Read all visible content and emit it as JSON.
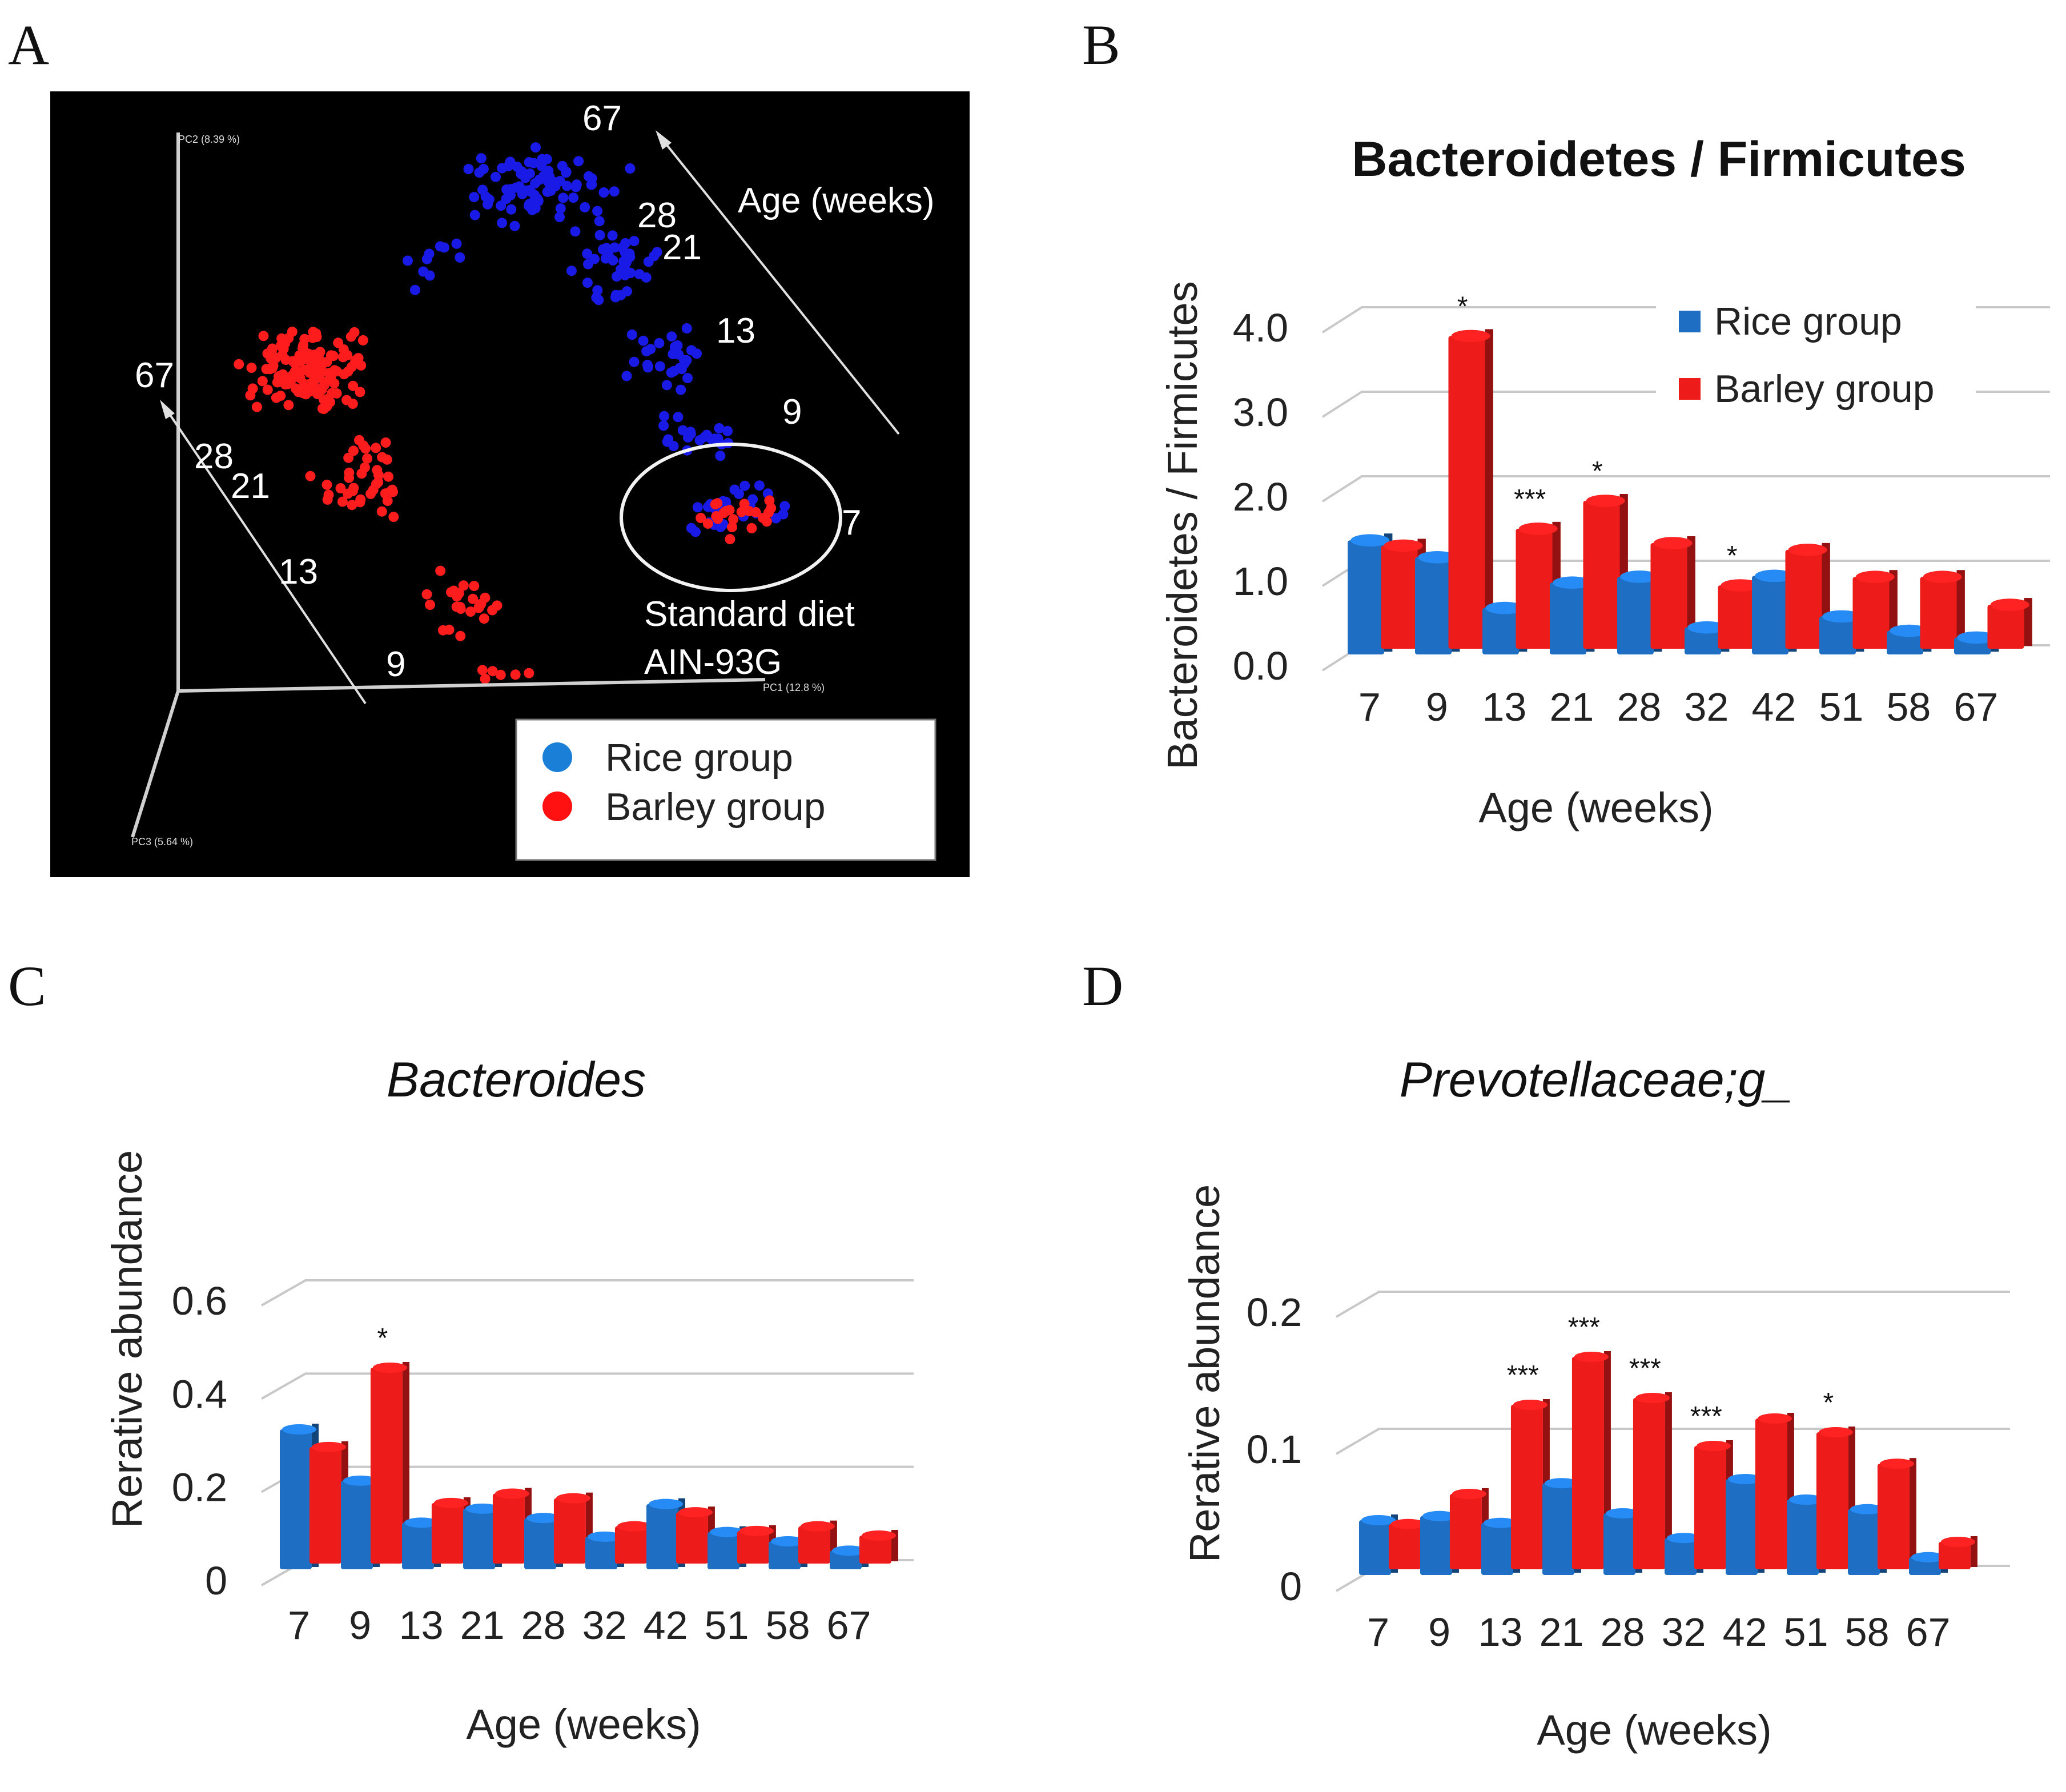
{
  "colors": {
    "rice": "#1e6fc4",
    "rice_dark": "#0f4f96",
    "barley": "#ee1b1b",
    "barley_dark": "#b00d0d",
    "pca_rice": "#1a1ae6",
    "pca_barley": "#ff1c1c",
    "pca_legend_rice": "#1a7fd6",
    "pca_legend_barley": "#ff1111"
  },
  "panels": {
    "a": "A",
    "b": "B",
    "c": "C",
    "d": "D"
  },
  "pca": {
    "legend": [
      "Rice group",
      "Barley group"
    ],
    "age_arrow_label": "Age (weeks)",
    "rice_age_labels": [
      "67",
      "28",
      "21",
      "13",
      "9",
      "7"
    ],
    "barley_age_labels": [
      "67",
      "28",
      "21",
      "13",
      "9"
    ],
    "standard_diet_line1": "Standard  diet",
    "standard_diet_line2": "AIN-93G",
    "axis_pc1": "PC1 (12.8 %)",
    "axis_pc2": "PC2 (8.39 %)",
    "axis_pc3": "PC3 (5.64 %)"
  },
  "chart_data": [
    {
      "id": "B",
      "type": "bar",
      "title": "Bacteroidetes / Firmicutes",
      "title_style": "bold",
      "xlabel": "Age (weeks)",
      "ylabel": "Bacteroidetes / Firmicutes",
      "categories": [
        "7",
        "9",
        "13",
        "21",
        "28",
        "32",
        "42",
        "51",
        "58",
        "67"
      ],
      "series": [
        {
          "name": "Rice group",
          "values": [
            1.35,
            1.15,
            0.55,
            0.85,
            0.92,
            0.32,
            0.93,
            0.45,
            0.28,
            0.2
          ]
        },
        {
          "name": "Barley group",
          "values": [
            1.22,
            3.7,
            1.42,
            1.75,
            1.25,
            0.75,
            1.17,
            0.85,
            0.85,
            0.52
          ]
        }
      ],
      "yticks": [
        "4.0",
        "3.0",
        "2.0",
        "1.0",
        "0.0"
      ],
      "ylim": [
        0,
        4.0
      ],
      "annotations": [
        {
          "category": "9",
          "text": "*"
        },
        {
          "category": "13",
          "text": "***"
        },
        {
          "category": "21",
          "text": "*"
        },
        {
          "category": "32",
          "text": "*"
        }
      ],
      "legend": [
        "Rice group",
        "Barley group"
      ],
      "legend_position": "top-right"
    },
    {
      "id": "C",
      "type": "bar",
      "title": "Bacteroides",
      "title_style": "italic",
      "xlabel": "Age (weeks)",
      "ylabel": "Rerative abundance",
      "categories": [
        "7",
        "9",
        "13",
        "21",
        "28",
        "32",
        "42",
        "51",
        "58",
        "67"
      ],
      "series": [
        {
          "name": "Rice group",
          "values": [
            0.3,
            0.19,
            0.1,
            0.13,
            0.11,
            0.07,
            0.14,
            0.08,
            0.06,
            0.04
          ]
        },
        {
          "name": "Barley group",
          "values": [
            0.25,
            0.42,
            0.13,
            0.15,
            0.14,
            0.08,
            0.11,
            0.07,
            0.08,
            0.06
          ]
        }
      ],
      "yticks": [
        "0.6",
        "0.4",
        "0.2",
        "0"
      ],
      "ylim": [
        0,
        0.6
      ],
      "annotations": [
        {
          "category": "9",
          "text": "*"
        }
      ]
    },
    {
      "id": "D",
      "type": "bar",
      "title": "Prevotellaceae;g_",
      "title_style": "italic",
      "xlabel": "Age (weeks)",
      "ylabel": "Rerative abundance",
      "categories": [
        "7",
        "9",
        "13",
        "21",
        "28",
        "32",
        "42",
        "51",
        "58",
        "67"
      ],
      "series": [
        {
          "name": "Rice group",
          "values": [
            0.04,
            0.043,
            0.038,
            0.067,
            0.045,
            0.027,
            0.07,
            0.055,
            0.048,
            0.013
          ]
        },
        {
          "name": "Barley group",
          "values": [
            0.033,
            0.055,
            0.12,
            0.155,
            0.125,
            0.09,
            0.11,
            0.1,
            0.077,
            0.02
          ]
        }
      ],
      "yticks": [
        "0.2",
        "0.1",
        "0"
      ],
      "ylim": [
        0,
        0.2
      ],
      "annotations": [
        {
          "category": "13",
          "text": "***"
        },
        {
          "category": "21",
          "text": "***"
        },
        {
          "category": "28",
          "text": "***"
        },
        {
          "category": "32",
          "text": "***"
        },
        {
          "category": "51",
          "text": "*"
        }
      ]
    }
  ]
}
